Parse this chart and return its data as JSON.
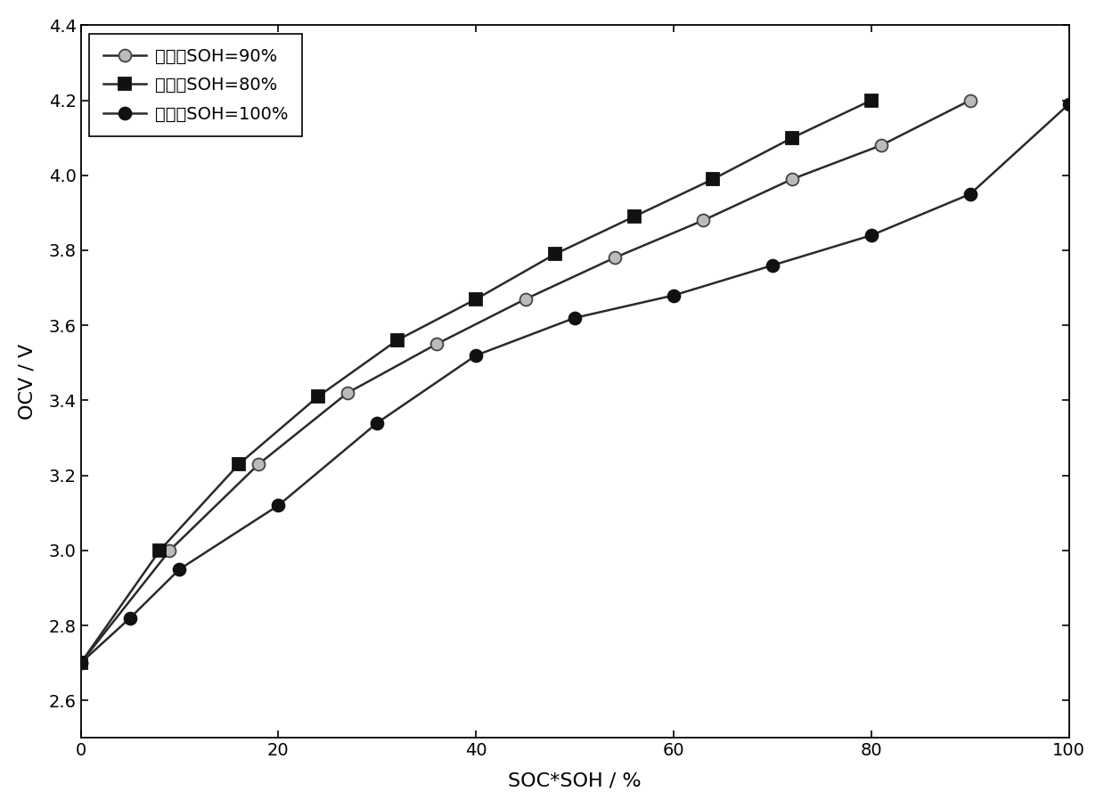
{
  "title": "",
  "xlabel": "SOC*SOH / %",
  "ylabel": "OCV / V",
  "xlim": [
    0,
    100
  ],
  "ylim": [
    2.5,
    4.4
  ],
  "xticks": [
    0,
    20,
    40,
    60,
    80,
    100
  ],
  "yticks": [
    2.6,
    2.8,
    3.0,
    3.2,
    3.4,
    3.6,
    3.8,
    4.0,
    4.2,
    4.4
  ],
  "label_90": "旧电池SOH=90%",
  "label_80": "旧电池SOH=80%",
  "label_100": "新电池SOH=100%",
  "x_90": [
    0,
    9,
    18,
    27,
    36,
    45,
    54,
    63,
    72,
    81,
    90
  ],
  "y_90": [
    2.7,
    3.0,
    3.23,
    3.42,
    3.55,
    3.67,
    3.78,
    3.88,
    3.99,
    4.08,
    4.2
  ],
  "x_80": [
    0,
    8,
    16,
    24,
    32,
    40,
    48,
    56,
    64,
    72,
    80
  ],
  "y_80": [
    2.7,
    3.0,
    3.23,
    3.41,
    3.56,
    3.67,
    3.79,
    3.89,
    3.99,
    4.1,
    4.2
  ],
  "x_100": [
    0,
    5,
    10,
    20,
    30,
    40,
    50,
    60,
    70,
    80,
    90,
    100
  ],
  "y_100": [
    2.7,
    2.82,
    2.95,
    3.12,
    3.34,
    3.52,
    3.62,
    3.68,
    3.76,
    3.84,
    3.95,
    4.19
  ],
  "line_color": "#2a2a2a",
  "linewidth": 1.8,
  "markersize": 10,
  "legend_fontsize": 14,
  "axis_fontsize": 16,
  "tick_fontsize": 14,
  "background_color": "#ffffff"
}
